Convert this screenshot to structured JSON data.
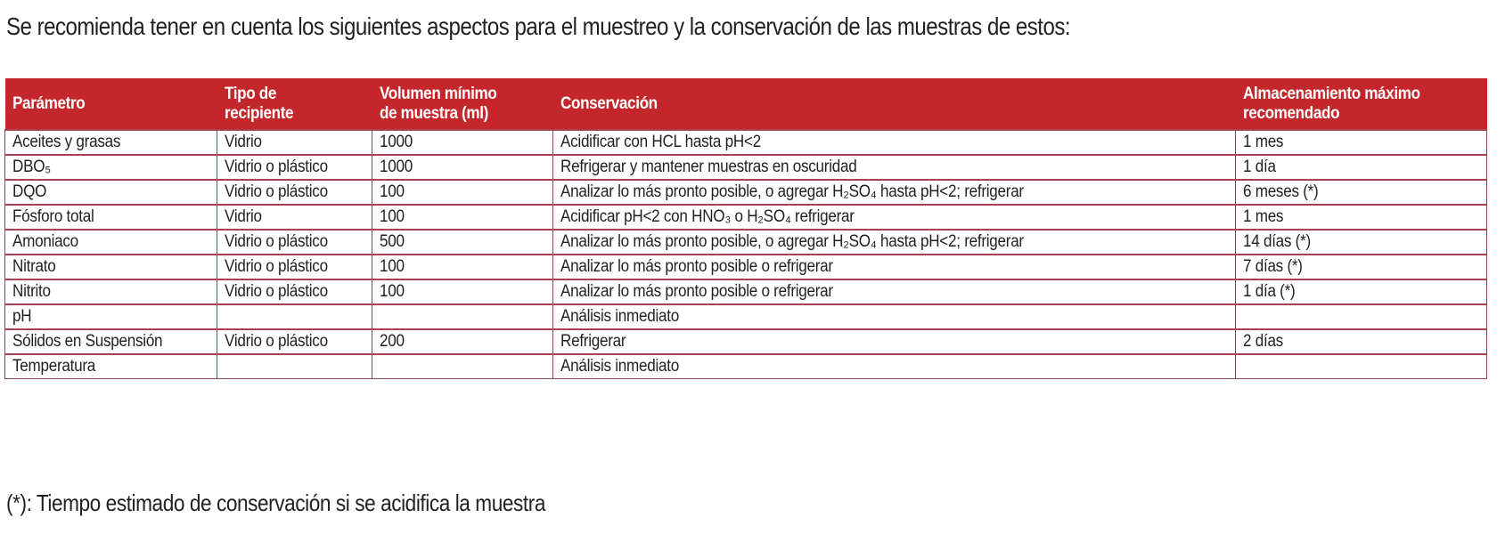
{
  "intro_text": "Se recomienda tener en cuenta los siguientes aspectos para el muestreo y la conservación de las muestras de estos:",
  "table": {
    "headers": {
      "parametro": "Parámetro",
      "tipo_1": "Tipo de",
      "tipo_2": "recipiente",
      "volumen_1": "Volumen mínimo",
      "volumen_2": "de muestra (ml)",
      "conservacion": "Conservación",
      "almacenamiento_1": "Almacenamiento máximo",
      "almacenamiento_2": "recomendado"
    },
    "rows": [
      {
        "parametro": "Aceites y grasas",
        "recipiente": "Vidrio",
        "volumen": "1000",
        "conservacion": "Acidificar con HCL hasta pH<2",
        "almacenamiento": "1 mes"
      },
      {
        "parametro": "DBO₅",
        "recipiente": "Vidrio o plástico",
        "volumen": "1000",
        "conservacion": "Refrigerar y mantener muestras en oscuridad",
        "almacenamiento": "1 día"
      },
      {
        "parametro": "DQO",
        "recipiente": "Vidrio o plástico",
        "volumen": "100",
        "conservacion": "Analizar lo más pronto posible, o agregar H₂SO₄ hasta pH<2; refrigerar",
        "almacenamiento": "6 meses (*)"
      },
      {
        "parametro": "Fósforo total",
        "recipiente": "Vidrio",
        "volumen": "100",
        "conservacion": "Acidificar pH<2 con HNO₃ o H₂SO₄ refrigerar",
        "almacenamiento": "1 mes"
      },
      {
        "parametro": "Amoniaco",
        "recipiente": "Vidrio o plástico",
        "volumen": "500",
        "conservacion": "Analizar lo más pronto posible, o agregar H₂SO₄ hasta pH<2; refrigerar",
        "almacenamiento": "14 días (*)"
      },
      {
        "parametro": "Nitrato",
        "recipiente": "Vidrio o plástico",
        "volumen": "100",
        "conservacion": "Analizar lo más pronto posible o refrigerar",
        "almacenamiento": "7 días (*)"
      },
      {
        "parametro": "Nitrito",
        "recipiente": "Vidrio o plástico",
        "volumen": "100",
        "conservacion": "Analizar lo más pronto posible o refrigerar",
        "almacenamiento": "1 día (*)"
      },
      {
        "parametro": "pH",
        "recipiente": "",
        "volumen": "",
        "conservacion": "Análisis inmediato",
        "almacenamiento": ""
      },
      {
        "parametro": "Sólidos en Suspensión",
        "recipiente": "Vidrio o plástico",
        "volumen": "200",
        "conservacion": "Refrigerar",
        "almacenamiento": "2 días"
      },
      {
        "parametro": "Temperatura",
        "recipiente": "",
        "volumen": "",
        "conservacion": "Análisis inmediato",
        "almacenamiento": ""
      }
    ]
  },
  "footnote": "(*): Tiempo estimado de conservación si se acidifica la muestra",
  "colors": {
    "header_bg": "#c3262b",
    "border": "#8a4a5c",
    "text": "#231f20"
  }
}
